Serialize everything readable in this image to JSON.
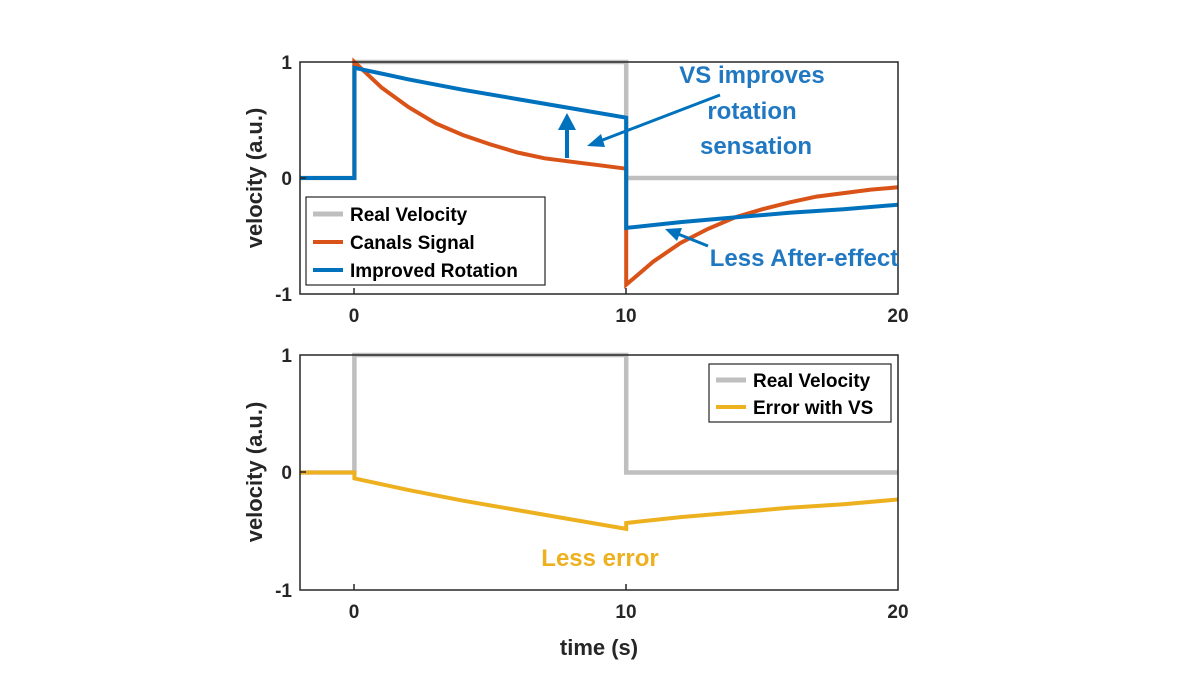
{
  "chart_data": [
    {
      "type": "line",
      "title": "",
      "xlabel": "",
      "ylabel": "velocity (a.u.)",
      "xlim": [
        -2,
        20
      ],
      "ylim": [
        -1,
        1
      ],
      "x_ticks": [
        "0",
        "10",
        "20"
      ],
      "y_ticks": [
        "-1",
        "0",
        "1"
      ],
      "grid": false,
      "legend": {
        "placement": "bottom-left",
        "entries": [
          "Real Velocity",
          "Canals Signal",
          "Improved Rotation"
        ]
      },
      "series": [
        {
          "name": "Real Velocity",
          "color": "#bfbfbf",
          "x": [
            -2,
            0,
            0,
            10,
            10,
            20
          ],
          "y": [
            0,
            0,
            1,
            1,
            0,
            0
          ]
        },
        {
          "name": "Canals Signal",
          "color": "#d95319",
          "x": [
            0,
            0,
            1,
            2,
            3,
            4,
            5,
            6,
            7,
            8,
            9,
            10,
            10,
            11,
            12,
            13,
            14,
            15,
            16,
            17,
            18,
            19,
            20
          ],
          "y": [
            0,
            1,
            0.78,
            0.61,
            0.47,
            0.37,
            0.29,
            0.22,
            0.17,
            0.14,
            0.11,
            0.08,
            -0.92,
            -0.72,
            -0.56,
            -0.44,
            -0.34,
            -0.27,
            -0.21,
            -0.16,
            -0.13,
            -0.1,
            -0.08
          ]
        },
        {
          "name": "Improved Rotation",
          "color": "#0072bd",
          "x": [
            -2,
            0,
            0,
            2,
            4,
            6,
            8,
            10,
            10,
            12,
            14,
            16,
            18,
            20
          ],
          "y": [
            0,
            0,
            0.95,
            0.85,
            0.76,
            0.68,
            0.6,
            0.52,
            -0.43,
            -0.38,
            -0.34,
            -0.3,
            -0.27,
            -0.23
          ]
        }
      ],
      "annotations": [
        {
          "text_lines": [
            "VS improves",
            "rotation",
            "sensation"
          ],
          "color": "#1f78c1"
        },
        {
          "text": "Less After-effect",
          "color": "#1f78c1"
        }
      ]
    },
    {
      "type": "line",
      "title": "",
      "xlabel": "time (s)",
      "ylabel": "velocity (a.u.)",
      "xlim": [
        -2,
        20
      ],
      "ylim": [
        -1,
        1
      ],
      "x_ticks": [
        "0",
        "10",
        "20"
      ],
      "y_ticks": [
        "-1",
        "0",
        "1"
      ],
      "grid": false,
      "legend": {
        "placement": "top-right",
        "entries": [
          "Real Velocity",
          "Error with VS"
        ]
      },
      "series": [
        {
          "name": "Real Velocity",
          "color": "#bfbfbf",
          "x": [
            -2,
            0,
            0,
            10,
            10,
            20
          ],
          "y": [
            0,
            0,
            1,
            1,
            0,
            0
          ]
        },
        {
          "name": "Error with VS",
          "color": "#edb120",
          "x": [
            -2,
            0,
            0,
            2,
            4,
            6,
            8,
            10,
            10,
            12,
            14,
            16,
            18,
            20
          ],
          "y": [
            0,
            0,
            -0.05,
            -0.15,
            -0.24,
            -0.32,
            -0.4,
            -0.48,
            -0.43,
            -0.38,
            -0.34,
            -0.3,
            -0.27,
            -0.23
          ]
        }
      ],
      "annotations": [
        {
          "text": "Less error",
          "color": "#edb120"
        }
      ]
    }
  ]
}
